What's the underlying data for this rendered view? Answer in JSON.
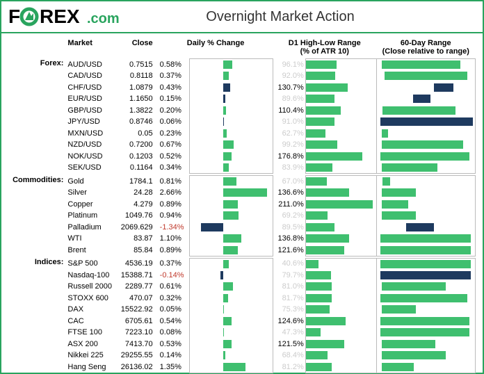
{
  "title": "Overnight Market Action",
  "colors": {
    "border": "#29a45e",
    "bar_green": "#3fbf6f",
    "bar_dark": "#1e3a5f",
    "muted_text": "#cccccc",
    "negative_text": "#c0392b"
  },
  "chart_params": {
    "daily_change_axis_min": -2.0,
    "daily_change_axis_max": 3.0,
    "d1_range_axis_max": 220,
    "range60_axis_min": 0,
    "range60_axis_max": 100
  },
  "columns": {
    "market": "Market",
    "close": "Close",
    "daily": "Daily % Change",
    "d1": "D1 High-Low Range",
    "d1_sub": "(% of ATR 10)",
    "r60": "60-Day Range",
    "r60_sub": "(Close relative to range)"
  },
  "groups": [
    {
      "category": "Forex:",
      "rows": [
        {
          "market": "AUD/USD",
          "close": "0.7515",
          "pct": 0.58,
          "d1": 96.1,
          "d1_muted": true,
          "r60_low": 5,
          "r60_high": 85
        },
        {
          "market": "CAD/USD",
          "close": "0.8118",
          "pct": 0.37,
          "d1": 92.0,
          "d1_muted": true,
          "r60_low": 8,
          "r60_high": 92
        },
        {
          "market": "CHF/USD",
          "close": "1.0879",
          "pct": 0.43,
          "d1": 130.7,
          "d1_muted": false,
          "r60_low": 58,
          "r60_high": 78,
          "dark": true
        },
        {
          "market": "EUR/USD",
          "close": "1.1650",
          "pct": 0.15,
          "d1": 89.6,
          "d1_muted": true,
          "r60_low": 37,
          "r60_high": 55,
          "dark": true
        },
        {
          "market": "GBP/USD",
          "close": "1.3822",
          "pct": 0.2,
          "d1": 110.4,
          "d1_muted": false,
          "r60_low": 6,
          "r60_high": 80
        },
        {
          "market": "JPY/USD",
          "close": "0.8746",
          "pct": 0.06,
          "d1": 91.0,
          "d1_muted": true,
          "r60_low": 4,
          "r60_high": 98,
          "dark": true
        },
        {
          "market": "MXN/USD",
          "close": "0.05",
          "pct": 0.23,
          "d1": 62.7,
          "d1_muted": true,
          "r60_low": 5,
          "r60_high": 12
        },
        {
          "market": "NZD/USD",
          "close": "0.7200",
          "pct": 0.67,
          "d1": 99.2,
          "d1_muted": true,
          "r60_low": 5,
          "r60_high": 88
        },
        {
          "market": "NOK/USD",
          "close": "0.1203",
          "pct": 0.52,
          "d1": 176.8,
          "d1_muted": false,
          "r60_low": 4,
          "r60_high": 94
        },
        {
          "market": "SEK/USD",
          "close": "0.1164",
          "pct": 0.34,
          "d1": 83.9,
          "d1_muted": true,
          "r60_low": 5,
          "r60_high": 62
        }
      ]
    },
    {
      "category": "Commodities:",
      "rows": [
        {
          "market": "Gold",
          "close": "1784.1",
          "pct": 0.81,
          "d1": 67.0,
          "d1_muted": true,
          "r60_low": 6,
          "r60_high": 14
        },
        {
          "market": "Silver",
          "close": "24.28",
          "pct": 2.66,
          "d1": 136.6,
          "d1_muted": false,
          "r60_low": 5,
          "r60_high": 40
        },
        {
          "market": "Copper",
          "close": "4.279",
          "pct": 0.89,
          "d1": 211.0,
          "d1_muted": false,
          "r60_low": 5,
          "r60_high": 32
        },
        {
          "market": "Platinum",
          "close": "1049.76",
          "pct": 0.94,
          "d1": 69.2,
          "d1_muted": true,
          "r60_low": 5,
          "r60_high": 40
        },
        {
          "market": "Palladium",
          "close": "2069.629",
          "pct": -1.34,
          "d1": 89.5,
          "d1_muted": true,
          "r60_low": 30,
          "r60_high": 58,
          "dark": true
        },
        {
          "market": "WTI",
          "close": "83.87",
          "pct": 1.1,
          "d1": 136.8,
          "d1_muted": false,
          "r60_low": 4,
          "r60_high": 96
        },
        {
          "market": "Brent",
          "close": "85.84",
          "pct": 0.89,
          "d1": 121.6,
          "d1_muted": false,
          "r60_low": 4,
          "r60_high": 96
        }
      ]
    },
    {
      "category": "Indices:",
      "rows": [
        {
          "market": "S&P 500",
          "close": "4536.19",
          "pct": 0.37,
          "d1": 40.6,
          "d1_muted": true,
          "r60_low": 4,
          "r60_high": 96
        },
        {
          "market": "Nasdaq-100",
          "close": "15388.71",
          "pct": -0.14,
          "d1": 79.7,
          "d1_muted": true,
          "r60_low": 4,
          "r60_high": 96,
          "dark": true
        },
        {
          "market": "Russell 2000",
          "close": "2289.77",
          "pct": 0.61,
          "d1": 81.0,
          "d1_muted": true,
          "r60_low": 5,
          "r60_high": 70
        },
        {
          "market": "STOXX 600",
          "close": "470.07",
          "pct": 0.32,
          "d1": 81.7,
          "d1_muted": true,
          "r60_low": 4,
          "r60_high": 92
        },
        {
          "market": "DAX",
          "close": "15522.92",
          "pct": 0.05,
          "d1": 75.3,
          "d1_muted": true,
          "r60_low": 5,
          "r60_high": 40
        },
        {
          "market": "CAC",
          "close": "6705.61",
          "pct": 0.54,
          "d1": 124.6,
          "d1_muted": false,
          "r60_low": 4,
          "r60_high": 94
        },
        {
          "market": "FTSE 100",
          "close": "7223.10",
          "pct": 0.08,
          "d1": 47.3,
          "d1_muted": true,
          "r60_low": 4,
          "r60_high": 94
        },
        {
          "market": "ASX 200",
          "close": "7413.70",
          "pct": 0.53,
          "d1": 121.5,
          "d1_muted": false,
          "r60_low": 5,
          "r60_high": 60
        },
        {
          "market": "Nikkei 225",
          "close": "29255.55",
          "pct": 0.14,
          "d1": 68.4,
          "d1_muted": true,
          "r60_low": 5,
          "r60_high": 70
        },
        {
          "market": "Hang Seng",
          "close": "26136.02",
          "pct": 1.35,
          "d1": 81.2,
          "d1_muted": true,
          "r60_low": 5,
          "r60_high": 38
        }
      ]
    }
  ]
}
